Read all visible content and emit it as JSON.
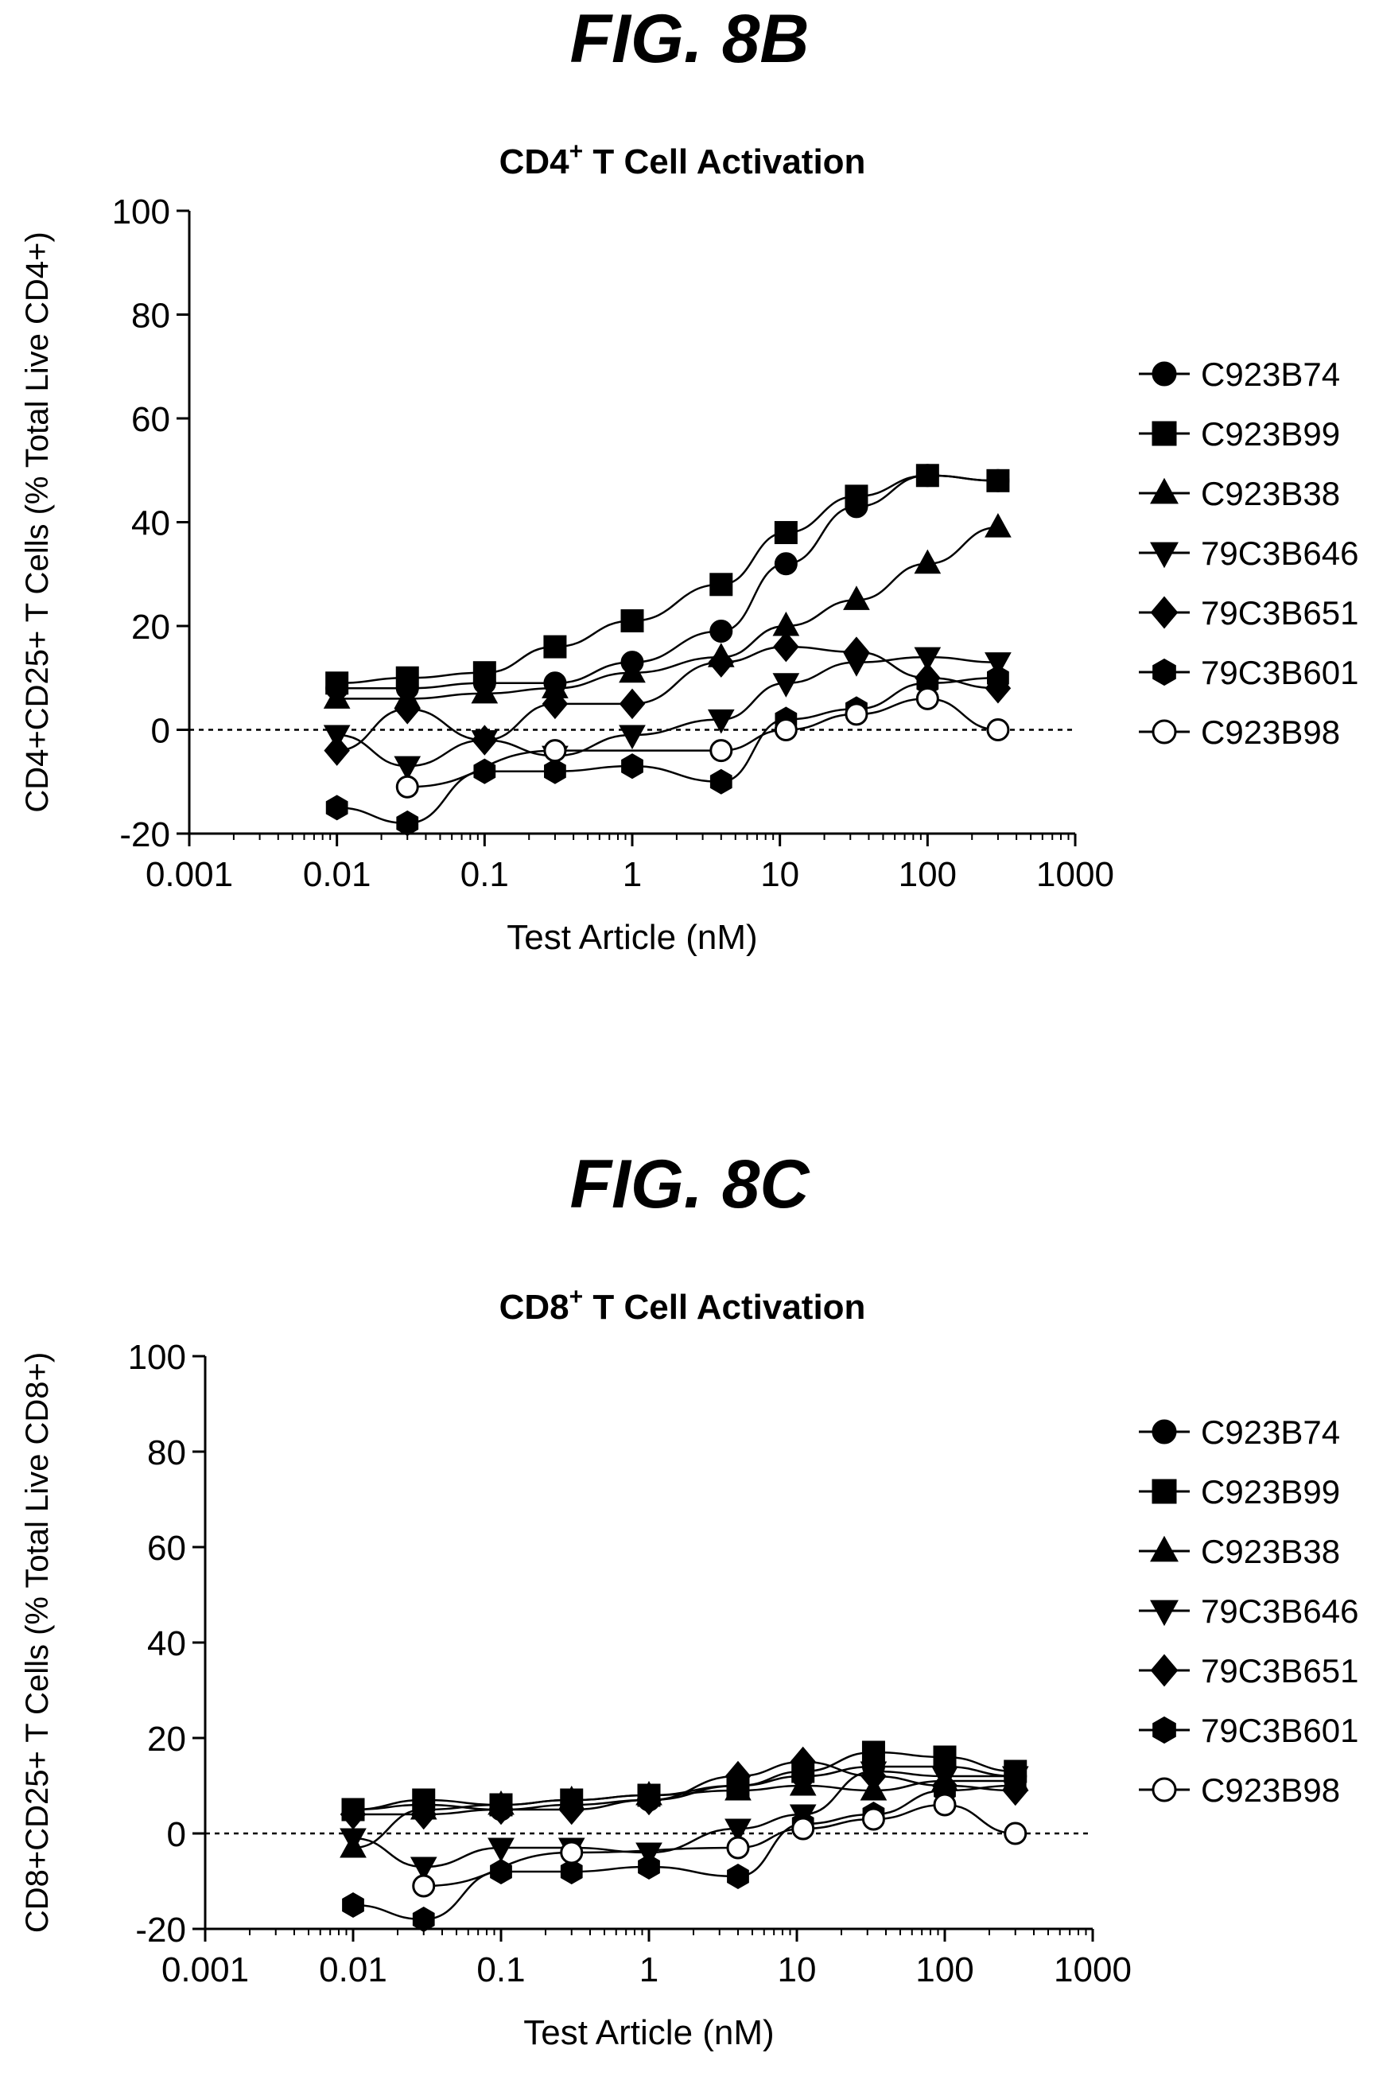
{
  "colors": {
    "ink": "#000000",
    "background": "#ffffff"
  },
  "figures": [
    {
      "label": "FIG. 8B"
    },
    {
      "label": "FIG. 8C"
    }
  ],
  "chart_data": [
    {
      "type": "scatter",
      "title": "CD4",
      "title_superscript": "+",
      "title_suffix": "T Cell Activation",
      "xlabel": "Test Article (nM)",
      "ylabel": "CD4+CD25+ T Cells (% Total Live CD4+)",
      "xscale": "log",
      "xlim": [
        0.001,
        1000
      ],
      "ylim": [
        -20,
        100
      ],
      "xticks": [
        0.001,
        0.01,
        0.1,
        1,
        10,
        100,
        1000
      ],
      "xtick_labels": [
        "0.001",
        "0.01",
        "0.1",
        "1",
        "10",
        "100",
        "1000"
      ],
      "yticks": [
        -20,
        0,
        20,
        40,
        60,
        80,
        100
      ],
      "ytick_labels": [
        "-20",
        "0",
        "20",
        "40",
        "60",
        "80",
        "100"
      ],
      "grid": false,
      "legend_position": "right",
      "reference_line": {
        "y": 0,
        "style": "dotted"
      },
      "x": [
        0.01,
        0.03,
        0.1,
        0.3,
        1,
        4,
        11,
        33,
        100,
        300
      ],
      "series": [
        {
          "name": "C923B74",
          "marker": "circle",
          "values": [
            8,
            8,
            9,
            9,
            13,
            19,
            32,
            43,
            49,
            48
          ]
        },
        {
          "name": "C923B99",
          "marker": "square",
          "values": [
            9,
            10,
            11,
            16,
            21,
            28,
            38,
            45,
            49,
            48
          ]
        },
        {
          "name": "C923B38",
          "marker": "triangle-up",
          "values": [
            6,
            6,
            7,
            8,
            11,
            14,
            20,
            25,
            32,
            39
          ]
        },
        {
          "name": "79C3B646",
          "marker": "triangle-down",
          "values": [
            -1,
            -7,
            -2,
            -5,
            -1,
            2,
            9,
            13,
            14,
            13
          ]
        },
        {
          "name": "79C3B651",
          "marker": "diamond",
          "values": [
            -4,
            4,
            -2,
            5,
            5,
            13,
            16,
            15,
            10,
            8
          ]
        },
        {
          "name": "79C3B601",
          "marker": "hexagon",
          "values": [
            -15,
            -18,
            -8,
            -8,
            -7,
            -10,
            2,
            4,
            9,
            10
          ]
        },
        {
          "name": "C923B98",
          "marker": "open-circle",
          "values": [
            null,
            -11,
            null,
            -4,
            null,
            -4,
            0,
            3,
            6,
            0
          ]
        }
      ]
    },
    {
      "type": "scatter",
      "title": "CD8",
      "title_superscript": "+",
      "title_suffix": "T Cell Activation",
      "xlabel": "Test Article (nM)",
      "ylabel": "CD8+CD25+ T Cells (% Total Live CD8+)",
      "xscale": "log",
      "xlim": [
        0.001,
        1000
      ],
      "ylim": [
        -20,
        100
      ],
      "xticks": [
        0.001,
        0.01,
        0.1,
        1,
        10,
        100,
        1000
      ],
      "xtick_labels": [
        "0.001",
        "0.01",
        "0.1",
        "1",
        "10",
        "100",
        "1000"
      ],
      "yticks": [
        -20,
        0,
        20,
        40,
        60,
        80,
        100
      ],
      "ytick_labels": [
        "-20",
        "0",
        "20",
        "40",
        "60",
        "80",
        "100"
      ],
      "grid": false,
      "legend_position": "right",
      "reference_line": {
        "y": 0,
        "style": "dotted"
      },
      "x": [
        0.01,
        0.03,
        0.1,
        0.3,
        1,
        4,
        11,
        33,
        100,
        300
      ],
      "series": [
        {
          "name": "C923B74",
          "marker": "circle",
          "values": [
            5,
            6,
            5,
            6,
            7,
            10,
            12,
            14,
            14,
            12
          ]
        },
        {
          "name": "C923B99",
          "marker": "square",
          "values": [
            5,
            7,
            6,
            7,
            8,
            10,
            13,
            17,
            16,
            13
          ]
        },
        {
          "name": "C923B38",
          "marker": "triangle-up",
          "values": [
            -3,
            5,
            6,
            7,
            8,
            9,
            10,
            9,
            11,
            11
          ]
        },
        {
          "name": "79C3B646",
          "marker": "triangle-down",
          "values": [
            -1,
            -7,
            -3,
            -3,
            -4,
            1,
            4,
            13,
            12,
            12
          ]
        },
        {
          "name": "79C3B651",
          "marker": "diamond",
          "values": [
            4,
            4,
            5,
            5,
            7,
            12,
            15,
            12,
            10,
            9
          ]
        },
        {
          "name": "79C3B601",
          "marker": "hexagon",
          "values": [
            -15,
            -18,
            -8,
            -8,
            -7,
            -9,
            2,
            4,
            9,
            10
          ]
        },
        {
          "name": "C923B98",
          "marker": "open-circle",
          "values": [
            null,
            -11,
            null,
            -4,
            null,
            -3,
            1,
            3,
            6,
            0
          ]
        }
      ]
    }
  ]
}
